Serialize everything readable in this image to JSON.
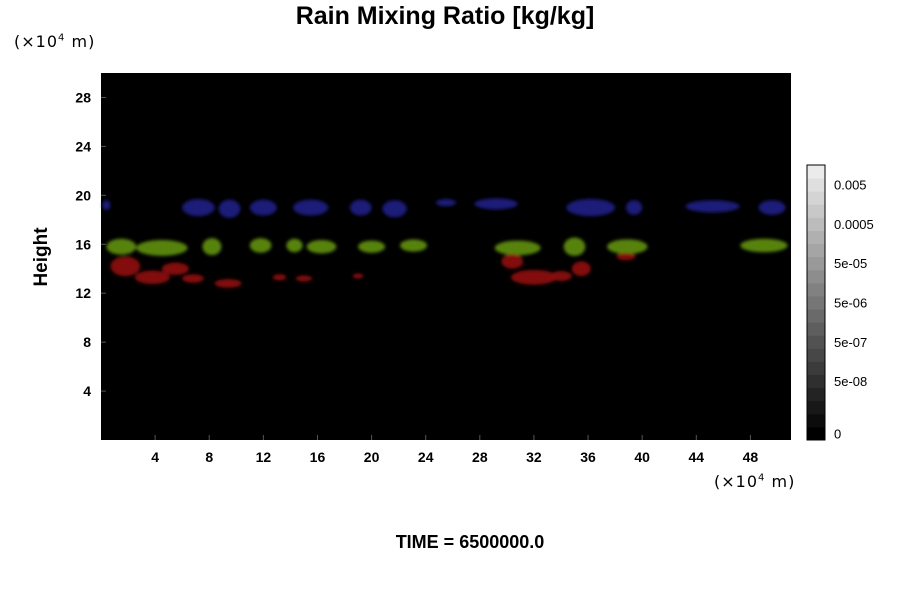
{
  "chart_data": {
    "type": "heatmap",
    "title": "Rain Mixing Ratio [kg/kg]",
    "ylabel": "Height",
    "xlabel": "",
    "x_unit_prefix": "(×10",
    "x_unit_exp": "4",
    "x_unit_suffix": " m)",
    "y_unit_prefix": "(×10",
    "y_unit_exp": "4",
    "y_unit_suffix": " m)",
    "footer": "TIME = 6500000.0",
    "xlim": [
      0,
      51
    ],
    "ylim": [
      0,
      30
    ],
    "x_ticks": [
      4,
      8,
      12,
      16,
      20,
      24,
      28,
      32,
      36,
      40,
      44,
      48
    ],
    "y_ticks": [
      4,
      8,
      12,
      16,
      20,
      24,
      28
    ],
    "background_color": "#000000",
    "colorbar": {
      "labels": [
        "0.005",
        "0.0005",
        "5e-05",
        "5e-06",
        "5e-07",
        "5e-08",
        "0"
      ],
      "label_levels": [
        19,
        16,
        13,
        10,
        7,
        4,
        0
      ],
      "levels": 21
    },
    "features": [
      {
        "color": "#1a1a80",
        "band": "upper",
        "blobs": [
          {
            "x": 0.4,
            "y": 19.2,
            "w": 0.6,
            "h": 0.8
          },
          {
            "x": 7.2,
            "y": 19.0,
            "w": 2.4,
            "h": 1.4
          },
          {
            "x": 9.5,
            "y": 18.9,
            "w": 1.6,
            "h": 1.5
          },
          {
            "x": 12.0,
            "y": 19.0,
            "w": 2.0,
            "h": 1.3
          },
          {
            "x": 15.5,
            "y": 19.0,
            "w": 2.6,
            "h": 1.3
          },
          {
            "x": 19.2,
            "y": 19.0,
            "w": 1.6,
            "h": 1.3
          },
          {
            "x": 21.7,
            "y": 18.9,
            "w": 1.8,
            "h": 1.4
          },
          {
            "x": 25.5,
            "y": 19.4,
            "w": 1.5,
            "h": 0.6
          },
          {
            "x": 29.2,
            "y": 19.3,
            "w": 3.2,
            "h": 0.9
          },
          {
            "x": 36.2,
            "y": 19.0,
            "w": 3.6,
            "h": 1.4
          },
          {
            "x": 39.4,
            "y": 19.0,
            "w": 1.2,
            "h": 1.2
          },
          {
            "x": 45.2,
            "y": 19.1,
            "w": 4.0,
            "h": 1.0
          },
          {
            "x": 49.6,
            "y": 19.0,
            "w": 2.0,
            "h": 1.2
          }
        ]
      },
      {
        "color": "#5c8a0e",
        "band": "middle",
        "blobs": [
          {
            "x": 1.5,
            "y": 15.8,
            "w": 2.2,
            "h": 1.3
          },
          {
            "x": 4.5,
            "y": 15.7,
            "w": 3.8,
            "h": 1.3
          },
          {
            "x": 8.2,
            "y": 15.8,
            "w": 1.4,
            "h": 1.4
          },
          {
            "x": 11.8,
            "y": 15.9,
            "w": 1.6,
            "h": 1.2
          },
          {
            "x": 14.3,
            "y": 15.9,
            "w": 1.2,
            "h": 1.1
          },
          {
            "x": 16.3,
            "y": 15.8,
            "w": 2.2,
            "h": 1.1
          },
          {
            "x": 20.0,
            "y": 15.8,
            "w": 2.0,
            "h": 1.0
          },
          {
            "x": 23.1,
            "y": 15.9,
            "w": 2.0,
            "h": 1.0
          },
          {
            "x": 30.8,
            "y": 15.7,
            "w": 3.4,
            "h": 1.2
          },
          {
            "x": 35.0,
            "y": 15.8,
            "w": 1.6,
            "h": 1.5
          },
          {
            "x": 38.9,
            "y": 15.8,
            "w": 3.0,
            "h": 1.2
          },
          {
            "x": 49.0,
            "y": 15.9,
            "w": 3.5,
            "h": 1.1
          }
        ]
      },
      {
        "color": "#8a1010",
        "band": "lower",
        "blobs": [
          {
            "x": 1.8,
            "y": 14.2,
            "w": 2.2,
            "h": 1.6
          },
          {
            "x": 3.8,
            "y": 13.3,
            "w": 2.6,
            "h": 1.1
          },
          {
            "x": 5.5,
            "y": 14.0,
            "w": 2.0,
            "h": 1.0
          },
          {
            "x": 6.8,
            "y": 13.2,
            "w": 1.6,
            "h": 0.7
          },
          {
            "x": 9.4,
            "y": 12.8,
            "w": 2.0,
            "h": 0.7
          },
          {
            "x": 13.2,
            "y": 13.3,
            "w": 1.0,
            "h": 0.5
          },
          {
            "x": 15.0,
            "y": 13.2,
            "w": 1.2,
            "h": 0.5
          },
          {
            "x": 19.0,
            "y": 13.4,
            "w": 0.8,
            "h": 0.4
          },
          {
            "x": 30.4,
            "y": 14.6,
            "w": 1.6,
            "h": 1.2
          },
          {
            "x": 32.0,
            "y": 13.3,
            "w": 3.4,
            "h": 1.2
          },
          {
            "x": 34.0,
            "y": 13.4,
            "w": 1.6,
            "h": 0.8
          },
          {
            "x": 35.5,
            "y": 14.0,
            "w": 1.4,
            "h": 1.2
          },
          {
            "x": 38.8,
            "y": 15.0,
            "w": 1.4,
            "h": 0.6
          }
        ]
      }
    ]
  }
}
